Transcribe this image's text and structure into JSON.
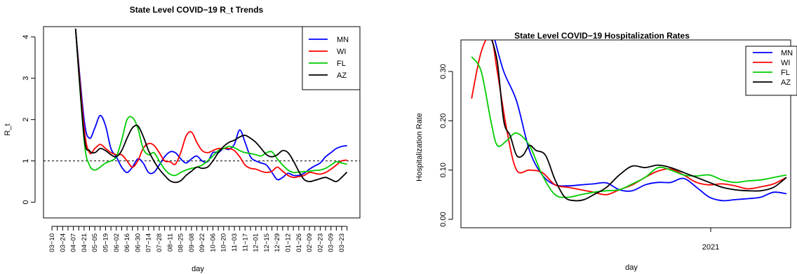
{
  "chart_data": [
    {
      "type": "line",
      "title": "State Level COVID−19 R_t Trends",
      "xlabel": "day",
      "ylabel": "R_t",
      "ylim": [
        0,
        4
      ],
      "yticks": [
        0,
        1,
        2,
        3,
        4
      ],
      "x_tick_labels": [
        "03−10",
        "03−24",
        "04−07",
        "04−21",
        "05−05",
        "05−19",
        "06−02",
        "06−16",
        "06−30",
        "07−14",
        "07−28",
        "08−11",
        "08−25",
        "09−08",
        "09−22",
        "10−06",
        "10−20",
        "11−03",
        "11−17",
        "12−01",
        "12−15",
        "12−29",
        "01−12",
        "01−26",
        "02−09",
        "02−23",
        "03−09",
        "03−23"
      ],
      "reference_line": 1,
      "legend": {
        "position": "top-right",
        "entries": [
          "MN",
          "WI",
          "FL",
          "AZ"
        ]
      },
      "series": [
        {
          "name": "MN",
          "color": "#0000ff",
          "x": [
            2.2,
            3,
            3.5,
            4.0,
            4.5,
            5,
            5.5,
            6,
            6.5,
            7,
            7.5,
            8,
            8.5,
            9,
            9.5,
            10,
            10.5,
            11,
            11.5,
            12,
            12.5,
            13,
            13.5,
            14,
            14.5,
            15,
            15.5,
            16,
            16.5,
            17,
            17.5,
            18,
            18.5,
            19,
            19.5,
            20,
            20.5,
            21,
            21.5,
            22,
            22.5,
            23,
            23.5,
            24,
            24.5,
            25,
            25.5,
            26,
            26.5,
            27,
            27.5
          ],
          "y": [
            4.2,
            2.0,
            1.55,
            1.8,
            2.1,
            1.85,
            1.3,
            1.1,
            0.85,
            0.72,
            0.85,
            1.05,
            0.95,
            0.72,
            0.72,
            0.9,
            1.1,
            1.22,
            1.2,
            1.05,
            0.95,
            1.05,
            1.12,
            1.0,
            0.98,
            1.2,
            1.2,
            1.3,
            1.28,
            1.4,
            1.75,
            1.45,
            1.1,
            1.0,
            0.95,
            0.9,
            0.72,
            0.55,
            0.6,
            0.7,
            0.65,
            0.65,
            0.7,
            0.8,
            0.88,
            0.95,
            1.1,
            1.2,
            1.3,
            1.35,
            1.37
          ]
        },
        {
          "name": "WI",
          "color": "#ff0000",
          "x": [
            2.2,
            3,
            3.5,
            4.0,
            4.5,
            5,
            5.5,
            6,
            6.5,
            7,
            7.5,
            8,
            8.5,
            9,
            9.5,
            10,
            10.5,
            11,
            11.5,
            12,
            12.5,
            13,
            13.5,
            14,
            14.5,
            15,
            15.5,
            16,
            16.5,
            17,
            17.5,
            18,
            18.5,
            19,
            19.5,
            20,
            20.5,
            21,
            21.5,
            22,
            22.5,
            23,
            23.5,
            24,
            24.5,
            25,
            25.5,
            26,
            26.5,
            27,
            27.5
          ],
          "y": [
            4.2,
            1.8,
            1.2,
            1.3,
            1.4,
            1.3,
            1.2,
            1.15,
            1.15,
            1.0,
            0.85,
            1.0,
            1.3,
            1.42,
            1.38,
            1.2,
            1.0,
            0.98,
            0.92,
            1.2,
            1.6,
            1.7,
            1.45,
            1.25,
            1.2,
            1.25,
            1.3,
            1.3,
            1.3,
            1.25,
            1.1,
            0.9,
            0.82,
            0.8,
            0.75,
            0.72,
            0.75,
            0.85,
            0.75,
            0.65,
            0.6,
            0.62,
            0.65,
            0.72,
            0.7,
            0.68,
            0.72,
            0.8,
            0.9,
            1.0,
            1.02
          ]
        },
        {
          "name": "FL",
          "color": "#00cc00",
          "x": [
            2.2,
            3,
            3.5,
            4.0,
            4.5,
            5,
            5.5,
            6,
            6.5,
            7,
            7.5,
            8,
            8.5,
            9,
            9.5,
            10,
            10.5,
            11,
            11.5,
            12,
            12.5,
            13,
            13.5,
            14,
            14.5,
            15,
            15.5,
            16,
            16.5,
            17,
            17.5,
            18,
            18.5,
            19,
            19.5,
            20,
            20.5,
            21,
            21.5,
            22,
            22.5,
            23,
            23.5,
            24,
            24.5,
            25,
            25.5,
            26,
            26.5,
            27,
            27.5
          ],
          "y": [
            4.2,
            1.5,
            0.9,
            0.78,
            0.85,
            0.95,
            1.0,
            1.1,
            1.5,
            2.0,
            2.05,
            1.8,
            1.3,
            1.15,
            1.2,
            1.0,
            0.8,
            0.68,
            0.65,
            0.72,
            0.78,
            0.82,
            0.85,
            0.9,
            1.0,
            1.12,
            1.25,
            1.3,
            1.35,
            1.32,
            1.25,
            1.2,
            1.18,
            1.15,
            1.12,
            1.2,
            1.22,
            1.05,
            0.9,
            0.78,
            0.72,
            0.73,
            0.74,
            0.75,
            0.77,
            0.78,
            0.82,
            0.9,
            0.98,
            0.95,
            0.92
          ]
        },
        {
          "name": "AZ",
          "color": "#000000",
          "x": [
            2.2,
            3,
            3.5,
            4.0,
            4.5,
            5,
            5.5,
            6,
            6.5,
            7,
            7.5,
            8,
            8.5,
            9,
            9.5,
            10,
            10.5,
            11,
            11.5,
            12,
            12.5,
            13,
            13.5,
            14,
            14.5,
            15,
            15.5,
            16,
            16.5,
            17,
            17.5,
            18,
            18.5,
            19,
            19.5,
            20,
            20.5,
            21,
            21.5,
            22,
            22.5,
            23,
            23.5,
            24,
            24.5,
            25,
            25.5,
            26,
            26.5,
            27,
            27.5
          ],
          "y": [
            4.2,
            1.6,
            1.25,
            1.2,
            1.3,
            1.25,
            1.15,
            1.1,
            1.25,
            1.55,
            1.8,
            1.85,
            1.6,
            1.25,
            1.0,
            0.8,
            0.65,
            0.52,
            0.48,
            0.52,
            0.65,
            0.75,
            0.85,
            0.82,
            0.85,
            1.0,
            1.2,
            1.35,
            1.45,
            1.5,
            1.58,
            1.62,
            1.55,
            1.45,
            1.3,
            1.15,
            1.1,
            1.15,
            1.25,
            1.2,
            1.0,
            0.75,
            0.55,
            0.5,
            0.53,
            0.57,
            0.6,
            0.55,
            0.5,
            0.6,
            0.73
          ]
        }
      ]
    },
    {
      "type": "line",
      "title": "State Level COVID−19 Hospitalization Rates",
      "xlabel": "day",
      "ylabel": "Hospitalization Rate",
      "ylim": [
        0,
        0.36
      ],
      "yticks": [
        0,
        0.1,
        0.2,
        0.3
      ],
      "ytick_labels": [
        "0.00",
        "0.10",
        "0.20",
        "0.30"
      ],
      "x_tick_labels": [
        "2021"
      ],
      "legend": {
        "position": "top-right",
        "entries": [
          "MN",
          "WI",
          "FL",
          "AZ"
        ]
      },
      "series": [
        {
          "name": "MN",
          "color": "#0000ff",
          "x": [
            0.09,
            0.12,
            0.16,
            0.2,
            0.24,
            0.28,
            0.32,
            0.36,
            0.4,
            0.44,
            0.48,
            0.52,
            0.56,
            0.6,
            0.64,
            0.68,
            0.72,
            0.76,
            0.8,
            0.84,
            0.88,
            0.92,
            0.96,
            1.0
          ],
          "y": [
            0.37,
            0.3,
            0.24,
            0.14,
            0.09,
            0.07,
            0.068,
            0.07,
            0.072,
            0.074,
            0.06,
            0.058,
            0.07,
            0.075,
            0.075,
            0.083,
            0.065,
            0.045,
            0.038,
            0.04,
            0.042,
            0.045,
            0.055,
            0.052
          ]
        },
        {
          "name": "WI",
          "color": "#ff0000",
          "x": [
            0.02,
            0.05,
            0.08,
            0.1,
            0.13,
            0.16,
            0.2,
            0.24,
            0.28,
            0.32,
            0.36,
            0.4,
            0.44,
            0.48,
            0.52,
            0.56,
            0.6,
            0.64,
            0.68,
            0.72,
            0.76,
            0.8,
            0.84,
            0.88,
            0.92,
            0.96,
            1.0
          ],
          "y": [
            0.245,
            0.34,
            0.37,
            0.3,
            0.18,
            0.1,
            0.1,
            0.095,
            0.07,
            0.065,
            0.06,
            0.055,
            0.05,
            0.06,
            0.07,
            0.085,
            0.098,
            0.102,
            0.09,
            0.075,
            0.07,
            0.072,
            0.068,
            0.062,
            0.066,
            0.072,
            0.085
          ]
        },
        {
          "name": "FL",
          "color": "#00cc00",
          "x": [
            0.02,
            0.05,
            0.08,
            0.1,
            0.13,
            0.16,
            0.2,
            0.24,
            0.28,
            0.32,
            0.36,
            0.4,
            0.44,
            0.48,
            0.52,
            0.56,
            0.6,
            0.64,
            0.68,
            0.72,
            0.76,
            0.8,
            0.84,
            0.88,
            0.92,
            0.96,
            1.0
          ],
          "y": [
            0.33,
            0.3,
            0.2,
            0.15,
            0.16,
            0.175,
            0.15,
            0.09,
            0.05,
            0.045,
            0.05,
            0.055,
            0.058,
            0.06,
            0.072,
            0.085,
            0.105,
            0.1,
            0.09,
            0.088,
            0.09,
            0.08,
            0.075,
            0.078,
            0.08,
            0.085,
            0.09
          ]
        },
        {
          "name": "AZ",
          "color": "#000000",
          "x": [
            0.08,
            0.1,
            0.12,
            0.14,
            0.16,
            0.18,
            0.2,
            0.22,
            0.25,
            0.28,
            0.31,
            0.34,
            0.37,
            0.4,
            0.44,
            0.48,
            0.52,
            0.56,
            0.6,
            0.64,
            0.68,
            0.72,
            0.76,
            0.8,
            0.84,
            0.88,
            0.92,
            0.96,
            1.0
          ],
          "y": [
            0.37,
            0.32,
            0.2,
            0.17,
            0.13,
            0.13,
            0.15,
            0.14,
            0.13,
            0.08,
            0.045,
            0.038,
            0.04,
            0.05,
            0.065,
            0.09,
            0.108,
            0.105,
            0.11,
            0.105,
            0.095,
            0.085,
            0.075,
            0.065,
            0.06,
            0.058,
            0.058,
            0.065,
            0.085
          ]
        }
      ]
    }
  ]
}
